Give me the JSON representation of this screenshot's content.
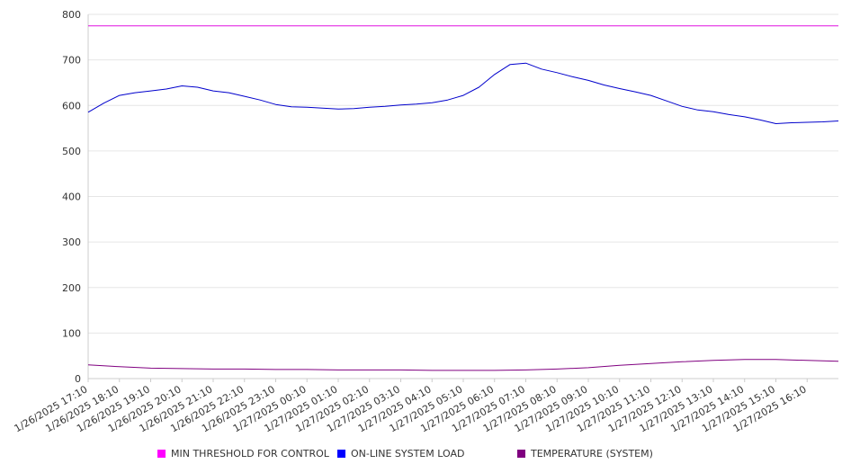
{
  "chart_data": {
    "type": "line",
    "x_tick_labels": [
      "1/26/2025 17:10",
      "1/26/2025 18:10",
      "1/26/2025 19:10",
      "1/26/2025 20:10",
      "1/26/2025 21:10",
      "1/26/2025 22:10",
      "1/26/2025 23:10",
      "1/27/2025 00:10",
      "1/27/2025 01:10",
      "1/27/2025 02:10",
      "1/27/2025 03:10",
      "1/27/2025 04:10",
      "1/27/2025 05:10",
      "1/27/2025 06:10",
      "1/27/2025 07:10",
      "1/27/2025 08:10",
      "1/27/2025 09:10",
      "1/27/2025 10:10",
      "1/27/2025 11:10",
      "1/27/2025 12:10",
      "1/27/2025 13:10",
      "1/27/2025 14:10",
      "1/27/2025 15:10",
      "1/27/2025 16:10"
    ],
    "x_start": "1/26/2025 17:10",
    "x_end": "1/27/2025 17:10",
    "y_ticks": [
      0,
      100,
      200,
      300,
      400,
      500,
      600,
      700,
      800
    ],
    "ylim": [
      0,
      800
    ],
    "grid": true,
    "legend_position": "bottom",
    "series": [
      {
        "name": "MIN THRESHOLD FOR CONTROL",
        "color": "#e010e0",
        "legend_color": "#ff00ff",
        "x": [
          "1/26/2025 17:10",
          "1/27/2025 17:10"
        ],
        "values": [
          775,
          775
        ]
      },
      {
        "name": "ON-LINE SYSTEM LOAD",
        "color": "#0000cc",
        "legend_color": "#0000ff",
        "x": [
          "1/26/2025 17:10",
          "1/26/2025 17:40",
          "1/26/2025 18:10",
          "1/26/2025 18:40",
          "1/26/2025 19:10",
          "1/26/2025 19:40",
          "1/26/2025 20:10",
          "1/26/2025 20:40",
          "1/26/2025 21:10",
          "1/26/2025 21:40",
          "1/26/2025 22:10",
          "1/26/2025 22:40",
          "1/26/2025 23:10",
          "1/26/2025 23:40",
          "1/27/2025 00:10",
          "1/27/2025 00:40",
          "1/27/2025 01:10",
          "1/27/2025 01:40",
          "1/27/2025 02:10",
          "1/27/2025 02:40",
          "1/27/2025 03:10",
          "1/27/2025 03:40",
          "1/27/2025 04:10",
          "1/27/2025 04:40",
          "1/27/2025 05:10",
          "1/27/2025 05:40",
          "1/27/2025 06:10",
          "1/27/2025 06:40",
          "1/27/2025 07:10",
          "1/27/2025 07:40",
          "1/27/2025 08:10",
          "1/27/2025 08:40",
          "1/27/2025 09:10",
          "1/27/2025 09:40",
          "1/27/2025 10:10",
          "1/27/2025 10:40",
          "1/27/2025 11:10",
          "1/27/2025 11:40",
          "1/27/2025 12:10",
          "1/27/2025 12:40",
          "1/27/2025 13:10",
          "1/27/2025 13:40",
          "1/27/2025 14:10",
          "1/27/2025 14:40",
          "1/27/2025 15:10",
          "1/27/2025 15:40",
          "1/27/2025 16:10",
          "1/27/2025 16:40",
          "1/27/2025 17:10"
        ],
        "values": [
          585,
          605,
          622,
          628,
          632,
          636,
          643,
          640,
          632,
          628,
          620,
          612,
          602,
          597,
          596,
          594,
          592,
          593,
          596,
          598,
          601,
          603,
          606,
          612,
          622,
          640,
          668,
          690,
          693,
          680,
          672,
          663,
          655,
          645,
          637,
          630,
          622,
          610,
          598,
          590,
          586,
          580,
          575,
          568,
          560,
          562,
          563,
          564,
          566
        ]
      },
      {
        "name": "TEMPERATURE (SYSTEM)",
        "color": "#800080",
        "legend_color": "#800080",
        "x": [
          "1/26/2025 17:10",
          "1/26/2025 18:10",
          "1/26/2025 19:10",
          "1/26/2025 20:10",
          "1/26/2025 21:10",
          "1/26/2025 22:10",
          "1/26/2025 23:10",
          "1/27/2025 00:10",
          "1/27/2025 01:10",
          "1/27/2025 02:10",
          "1/27/2025 03:10",
          "1/27/2025 04:10",
          "1/27/2025 05:10",
          "1/27/2025 06:10",
          "1/27/2025 07:10",
          "1/27/2025 08:10",
          "1/27/2025 09:10",
          "1/27/2025 10:10",
          "1/27/2025 11:10",
          "1/27/2025 12:10",
          "1/27/2025 13:10",
          "1/27/2025 14:10",
          "1/27/2025 15:10",
          "1/27/2025 16:10",
          "1/27/2025 17:10"
        ],
        "values": [
          30,
          26,
          23,
          22,
          21,
          21,
          20,
          20,
          19,
          19,
          19,
          18,
          18,
          18,
          19,
          21,
          24,
          29,
          33,
          37,
          40,
          42,
          42,
          40,
          38
        ]
      }
    ]
  }
}
